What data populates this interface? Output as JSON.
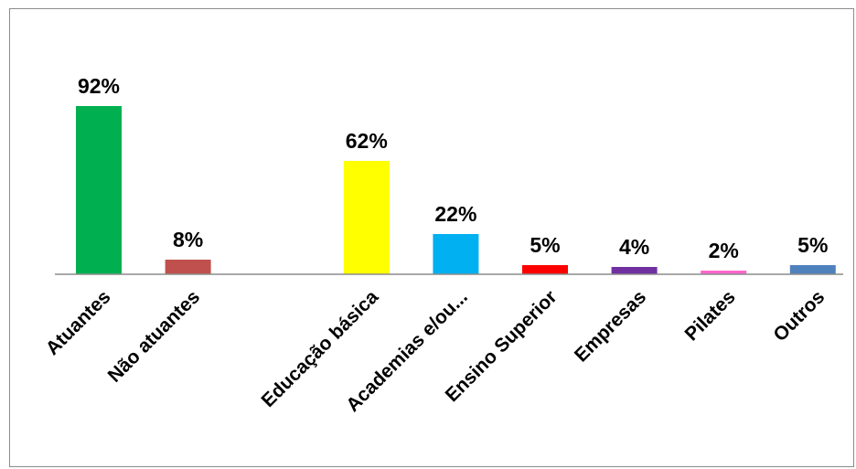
{
  "chart_data": {
    "type": "bar",
    "title": "",
    "xlabel": "",
    "ylabel": "",
    "ylim": [
      0,
      100
    ],
    "grid": false,
    "legend": "none",
    "categories": [
      "Atuantes",
      "Não atuantes",
      "",
      "Educação básica",
      "Academias e/ou...",
      "Ensino Superior",
      "Empresas",
      "Pilates",
      "Outros"
    ],
    "values": [
      92,
      8,
      null,
      62,
      22,
      5,
      4,
      2,
      5
    ],
    "data_labels": [
      "92%",
      "8%",
      "",
      "62%",
      "22%",
      "5%",
      "4%",
      "2%",
      "5%"
    ],
    "colors": [
      "#00b050",
      "#c0504d",
      "",
      "#ffff00",
      "#00b0f0",
      "#ff0000",
      "#7030a0",
      "#ff66cc",
      "#4f81bd"
    ]
  }
}
